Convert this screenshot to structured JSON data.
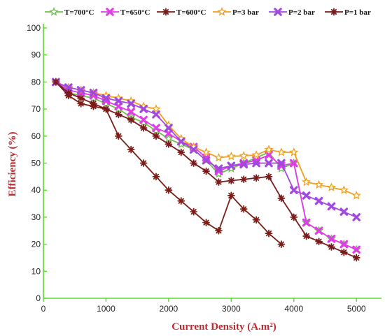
{
  "chart_data": {
    "type": "line",
    "title": "",
    "xlabel": "Current Density (A.m²)",
    "ylabel": "Efficiency (%)",
    "xlim": [
      0,
      5400
    ],
    "ylim": [
      0,
      100
    ],
    "xticks": [
      0,
      1000,
      2000,
      3000,
      4000,
      5000
    ],
    "yticks": [
      0,
      10,
      20,
      30,
      40,
      50,
      60,
      70,
      80,
      90,
      100
    ],
    "grid": false,
    "legend_position": "top",
    "colors": {
      "axis": "#5dd72e",
      "axis_title": "#c0282d",
      "T700": "#6ec04a",
      "T650": "#e03ce8",
      "T600": "#7a1e16",
      "P3": "#f0a020",
      "P2": "#a048e0",
      "P1": "#7a1a1a"
    },
    "series": [
      {
        "name": "T=700°C",
        "color_key": "T700",
        "marker": "star",
        "x": [
          200,
          400,
          600,
          800,
          1000,
          1200,
          1400,
          1600,
          1800,
          2000,
          2200,
          2400,
          2600,
          2800,
          3000,
          3200,
          3400,
          3600,
          3800,
          4000,
          4200,
          4400,
          4600,
          4800,
          5000
        ],
        "y": [
          80,
          76,
          75,
          74,
          72,
          70,
          67,
          65,
          62,
          59,
          57,
          55,
          51,
          46,
          48,
          50,
          52,
          54,
          48,
          50,
          28,
          25,
          22,
          20,
          18
        ]
      },
      {
        "name": "T=650°C",
        "color_key": "T650",
        "marker": "x",
        "x": [
          200,
          400,
          600,
          800,
          1000,
          1200,
          1400,
          1600,
          1800,
          2000,
          2200,
          2400,
          2600,
          2800,
          3000,
          3200,
          3400,
          3600,
          3800,
          4000,
          4200,
          4400,
          4600,
          4800,
          5000
        ],
        "y": [
          80,
          77,
          76,
          75,
          73,
          71,
          69,
          66,
          63,
          61,
          58,
          56,
          52,
          47,
          49,
          50,
          51,
          53,
          49,
          50,
          28,
          25,
          22,
          20,
          18
        ]
      },
      {
        "name": "T=600°C",
        "color_key": "T600",
        "marker": "star6",
        "x": [
          200,
          400,
          600,
          800,
          1000,
          1200,
          1400,
          1600,
          1800,
          2000,
          2200,
          2400,
          2600,
          2800,
          3000,
          3200,
          3400,
          3600,
          3800
        ],
        "y": [
          80,
          75,
          72,
          71,
          70,
          60,
          55,
          50,
          45,
          40,
          36,
          32,
          28,
          25,
          38,
          33,
          29,
          24,
          20
        ]
      },
      {
        "name": "P=3 bar",
        "color_key": "P3",
        "marker": "star",
        "x": [
          200,
          400,
          600,
          800,
          1000,
          1200,
          1400,
          1600,
          1800,
          2000,
          2200,
          2400,
          2600,
          2800,
          3000,
          3200,
          3400,
          3600,
          3800,
          4000,
          4200,
          4400,
          4600,
          4800,
          5000
        ],
        "y": [
          80,
          78,
          77,
          76,
          75,
          74,
          73,
          71,
          70,
          64,
          59,
          56,
          54,
          52,
          52.5,
          52.7,
          53,
          55,
          54,
          54,
          43,
          42,
          41,
          40,
          38
        ]
      },
      {
        "name": "P=2 bar",
        "color_key": "P2",
        "marker": "x",
        "x": [
          200,
          400,
          600,
          800,
          1000,
          1200,
          1400,
          1600,
          1800,
          2000,
          2200,
          2400,
          2600,
          2800,
          3000,
          3200,
          3400,
          3600,
          3800,
          4000,
          4200,
          4400,
          4600,
          4800,
          5000
        ],
        "y": [
          80,
          78,
          77,
          76,
          74,
          73,
          72,
          70,
          68,
          63,
          58,
          55,
          51,
          48,
          49,
          49.5,
          50,
          50,
          50,
          40,
          38,
          36,
          34,
          32,
          30
        ]
      },
      {
        "name": "P=1 bar",
        "color_key": "P1",
        "marker": "star6",
        "x": [
          200,
          400,
          600,
          800,
          1000,
          1200,
          1400,
          1600,
          1800,
          2000,
          2200,
          2400,
          2600,
          2800,
          3000,
          3200,
          3400,
          3600,
          3800,
          4000,
          4200,
          4400,
          4600,
          4800,
          5000
        ],
        "y": [
          80,
          76,
          74,
          72,
          70,
          68,
          66,
          63,
          60,
          57,
          54,
          50,
          47,
          43,
          43.5,
          44,
          44.5,
          45,
          37,
          30,
          23,
          21,
          19,
          17,
          15
        ]
      }
    ]
  }
}
